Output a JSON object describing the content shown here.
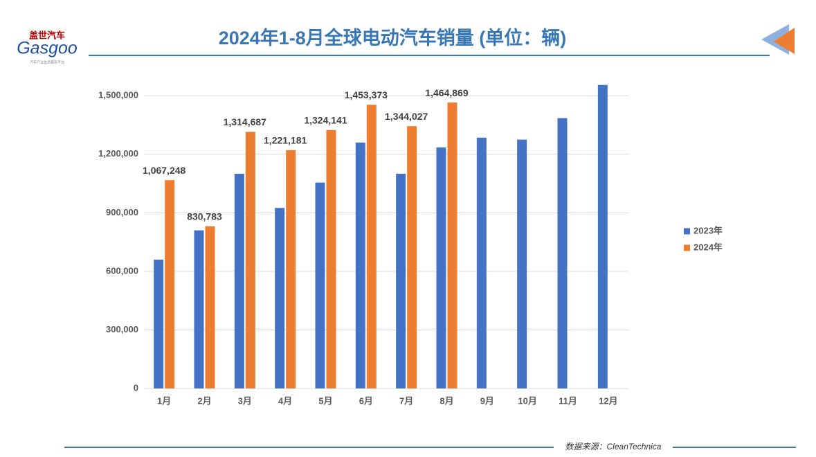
{
  "logo": {
    "name": "盖世汽车",
    "brand": "Gasgoo",
    "tagline": "汽车产业信息服务平台"
  },
  "source": "数据来源：CleanTechnica",
  "chart_data": {
    "type": "bar",
    "title": "2024年1-8月全球电动汽车销量 (单位：辆)",
    "categories": [
      "1月",
      "2月",
      "3月",
      "4月",
      "5月",
      "6月",
      "7月",
      "8月",
      "9月",
      "10月",
      "11月",
      "12月"
    ],
    "series": [
      {
        "name": "2023年",
        "color": "#4472c4",
        "values": [
          660000,
          810000,
          1100000,
          925000,
          1055000,
          1260000,
          1100000,
          1235000,
          1285000,
          1275000,
          1385000,
          1555000
        ]
      },
      {
        "name": "2024年",
        "color": "#ed7d31",
        "values": [
          1067248,
          830783,
          1314687,
          1221181,
          1324141,
          1453373,
          1344027,
          1464869,
          null,
          null,
          null,
          null
        ],
        "value_labels": [
          "1,067,248",
          "830,783",
          "1,314,687",
          "1,221,181",
          "1,324,141",
          "1,453,373",
          "1,344,027",
          "1,464,869",
          null,
          null,
          null,
          null
        ]
      }
    ],
    "ylim": [
      0,
      1600000
    ],
    "yticks": [
      0,
      {
        "value": 300000,
        "label": "300,000"
      },
      {
        "value": 600000,
        "label": "600,000"
      },
      {
        "value": 900000,
        "label": "900,000"
      },
      {
        "value": 1200000,
        "label": "1,200,000"
      },
      {
        "value": 1500000,
        "label": "1,500,000"
      }
    ],
    "grid": true,
    "legend": "right"
  }
}
